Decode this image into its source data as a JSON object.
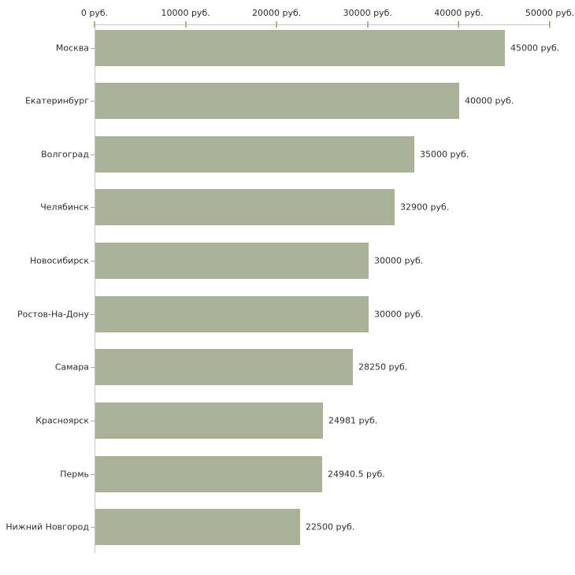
{
  "chart_data": {
    "type": "bar",
    "orientation": "horizontal",
    "title": "",
    "xlabel": "",
    "ylabel": "",
    "unit": "руб.",
    "grid": false,
    "legend": false,
    "xlim": [
      0,
      50000
    ],
    "categories": [
      "Москва",
      "Екатеринбург",
      "Волгоград",
      "Челябинск",
      "Новосибирск",
      "Ростов-На-Дону",
      "Самара",
      "Красноярск",
      "Пермь",
      "Нижний Новгород"
    ],
    "values": [
      45000,
      40000,
      35000,
      32900,
      30000,
      30000,
      28250,
      24981,
      24940.5,
      22500
    ],
    "value_labels": [
      "45000 руб.",
      "40000 руб.",
      "35000 руб.",
      "32900 руб.",
      "30000 руб.",
      "30000 руб.",
      "28250 руб.",
      "24981 руб.",
      "24940.5 руб.",
      "22500 руб."
    ],
    "x_ticks": [
      {
        "value": 0,
        "label": "0 руб."
      },
      {
        "value": 10000,
        "label": "10000 руб."
      },
      {
        "value": 20000,
        "label": "20000 руб."
      },
      {
        "value": 30000,
        "label": "30000 руб."
      },
      {
        "value": 40000,
        "label": "40000 руб."
      },
      {
        "value": 50000,
        "label": "50000 руб."
      }
    ],
    "colors": {
      "bar": "#acb298",
      "axis_line": "#c6c6c6",
      "tick": "#b5b08a",
      "text": "#2e2e2e",
      "background": "#ffffff"
    }
  }
}
